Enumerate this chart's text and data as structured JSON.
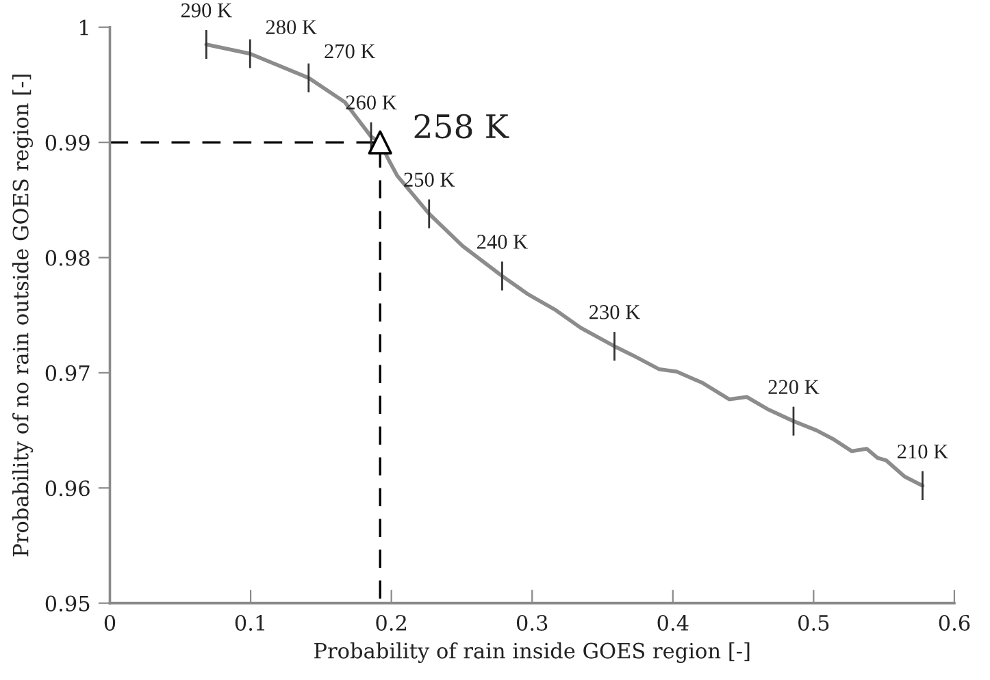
{
  "chart_data": {
    "type": "line",
    "xlabel": "Probability of rain inside GOES region [-]",
    "ylabel": "Probability of no rain outside GOES region [-]",
    "xlim": [
      0,
      0.6
    ],
    "ylim": [
      0.95,
      1
    ],
    "xticks": [
      0,
      0.1,
      0.2,
      0.3,
      0.4,
      0.5,
      0.6
    ],
    "yticks": [
      0.95,
      0.96,
      0.97,
      0.98,
      0.99,
      1
    ],
    "series": [
      {
        "color": "#8c8c8c",
        "x": [
          0.0685,
          0.0996,
          0.1412,
          0.1669,
          0.1856,
          0.192,
          0.198,
          0.2042,
          0.2268,
          0.2507,
          0.2787,
          0.2973,
          0.316,
          0.3346,
          0.3585,
          0.3718,
          0.3904,
          0.4028,
          0.4214,
          0.44,
          0.4525,
          0.468,
          0.4857,
          0.5021,
          0.5145,
          0.527,
          0.5378,
          0.5456,
          0.5515,
          0.5645,
          0.5774
        ],
        "values": [
          0.9985,
          0.9977,
          0.9956,
          0.9935,
          0.9905,
          0.99,
          0.9885,
          0.9871,
          0.9838,
          0.981,
          0.9784,
          0.9768,
          0.9755,
          0.9739,
          0.9723,
          0.9715,
          0.9703,
          0.9701,
          0.9691,
          0.9677,
          0.9679,
          0.9668,
          0.9658,
          0.965,
          0.9642,
          0.9632,
          0.9634,
          0.9626,
          0.9624,
          0.961,
          0.9602
        ]
      },
      {
        "type": "line",
        "color": "#000000",
        "line_style": "dashed",
        "x": [
          0,
          0.192,
          0.192
        ],
        "values": [
          0.99,
          0.99,
          0.95
        ]
      },
      {
        "type": "scatter",
        "color": "#000000",
        "marker": "triangle",
        "x": [
          0.192
        ],
        "values": [
          0.99
        ]
      }
    ],
    "annotations": [
      {
        "text": "290 K",
        "x": 0.0685,
        "y": 0.9985
      },
      {
        "text": "280 K",
        "x": 0.0996,
        "y": 0.9977
      },
      {
        "text": "270 K",
        "x": 0.1412,
        "y": 0.9956
      },
      {
        "text": "260 K",
        "x": 0.1856,
        "y": 0.9905
      },
      {
        "text": "250 K",
        "x": 0.2268,
        "y": 0.9838
      },
      {
        "text": "240 K",
        "x": 0.2787,
        "y": 0.9784
      },
      {
        "text": "230 K",
        "x": 0.3585,
        "y": 0.9723
      },
      {
        "text": "220 K",
        "x": 0.4857,
        "y": 0.9658
      },
      {
        "text": "210 K",
        "x": 0.5774,
        "y": 0.9602
      },
      {
        "text": "258 K",
        "x": 0.192,
        "y": 0.99
      }
    ]
  }
}
